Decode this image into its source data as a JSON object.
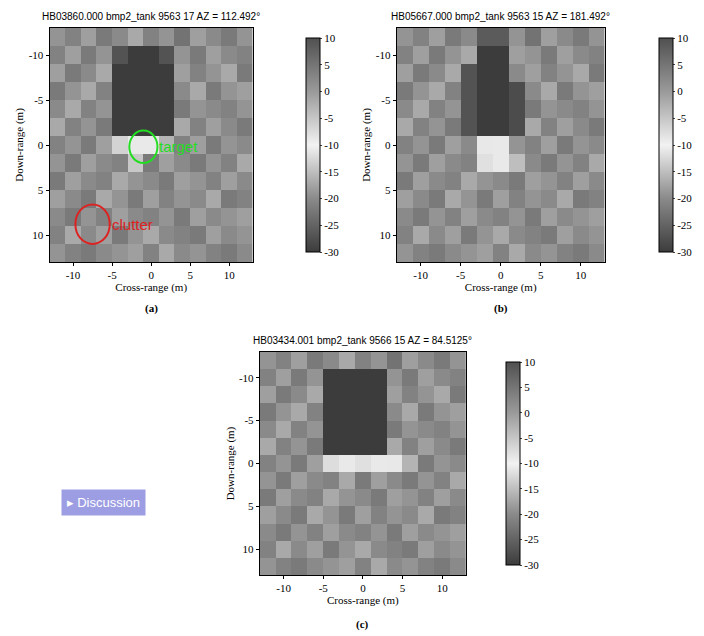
{
  "chart_data": [
    {
      "type": "heatmap",
      "title": "HB03860.000 bmp2_tank 9563 17 AZ = 112.492°",
      "panel": "(a)",
      "xlabel": "Cross-range (m)",
      "ylabel": "Down-range (m)",
      "x": [
        -12,
        -10,
        -8,
        -6,
        -4,
        -2,
        0,
        2,
        4,
        6,
        8,
        10,
        12
      ],
      "y": [
        -12,
        -10,
        -8,
        -6,
        -4,
        -2,
        0,
        2,
        4,
        6,
        8,
        10,
        12
      ],
      "z": [
        [
          -19,
          -21,
          -18,
          -22,
          -20,
          -17,
          -21,
          -19,
          -23,
          -18,
          -20,
          -22,
          -19
        ],
        [
          -21,
          -18,
          -22,
          -19,
          -27,
          -30,
          -30,
          -27,
          -19,
          -22,
          -18,
          -20,
          -21
        ],
        [
          -18,
          -22,
          -20,
          -17,
          -30,
          -30,
          -30,
          -30,
          -18,
          -21,
          -19,
          -17,
          -22
        ],
        [
          -22,
          -19,
          -17,
          -21,
          -30,
          -30,
          -30,
          -30,
          -20,
          -17,
          -22,
          -19,
          -18
        ],
        [
          -20,
          -17,
          -21,
          -19,
          -30,
          -30,
          -30,
          -30,
          -22,
          -19,
          -20,
          -21,
          -19
        ],
        [
          -17,
          -21,
          -19,
          -22,
          -30,
          -30,
          -30,
          -30,
          -17,
          -21,
          -18,
          -20,
          -22
        ],
        [
          -21,
          -19,
          -22,
          -18,
          -13,
          -9,
          -9,
          -16,
          -21,
          -18,
          -22,
          -19,
          -20
        ],
        [
          -19,
          -22,
          -18,
          -20,
          -21,
          -14,
          -22,
          -18,
          -20,
          -22,
          -19,
          -21,
          -17
        ],
        [
          -22,
          -18,
          -20,
          -21,
          -17,
          -19,
          -20,
          -22,
          -18,
          -19,
          -21,
          -18,
          -20
        ],
        [
          -18,
          -20,
          -22,
          -17,
          -19,
          -22,
          -18,
          -21,
          -19,
          -20,
          -17,
          -22,
          -21
        ],
        [
          -20,
          -22,
          -19,
          -21,
          -18,
          -20,
          -21,
          -19,
          -22,
          -18,
          -20,
          -19,
          -18
        ],
        [
          -21,
          -17,
          -20,
          -18,
          -22,
          -19,
          -17,
          -20,
          -21,
          -22,
          -18,
          -20,
          -19
        ],
        [
          -19,
          -21,
          -22,
          -20,
          -19,
          -18,
          -21,
          -17,
          -20,
          -19,
          -21,
          -22,
          -20
        ]
      ],
      "xlim": [
        -13,
        13
      ],
      "ylim": [
        13,
        -13
      ],
      "xticks": [
        -10,
        -5,
        0,
        5,
        10
      ],
      "yticks": [
        -10,
        -5,
        0,
        5,
        10
      ],
      "colorbar_range": [
        -30,
        10
      ],
      "colorbar_ticks": [
        10,
        5,
        0,
        -5,
        -10,
        -15,
        -20,
        -25,
        -30
      ],
      "grid": true,
      "annotations": [
        {
          "text": "target",
          "x": -1,
          "y": 0.2,
          "r": 1.8,
          "color": "#22dd22"
        },
        {
          "text": "clutter",
          "x": -7.5,
          "y": 8.8,
          "r": 2.2,
          "color": "#dd2222"
        }
      ]
    },
    {
      "type": "heatmap",
      "title": "HB05667.000 bmp2_tank 9563 15 AZ = 181.492°",
      "panel": "(b)",
      "xlabel": "Cross-range (m)",
      "ylabel": "Down-range (m)",
      "x": [
        -12,
        -10,
        -8,
        -6,
        -4,
        -2,
        0,
        2,
        4,
        6,
        8,
        10,
        12
      ],
      "y": [
        -12,
        -10,
        -8,
        -6,
        -4,
        -2,
        0,
        2,
        4,
        6,
        8,
        10,
        12
      ],
      "z": [
        [
          -19,
          -21,
          -18,
          -22,
          -20,
          -26,
          -26,
          -19,
          -23,
          -18,
          -20,
          -22,
          -19
        ],
        [
          -21,
          -18,
          -22,
          -19,
          -17,
          -30,
          -30,
          -18,
          -19,
          -22,
          -18,
          -20,
          -21
        ],
        [
          -18,
          -22,
          -20,
          -17,
          -27,
          -30,
          -30,
          -20,
          -18,
          -21,
          -19,
          -17,
          -22
        ],
        [
          -22,
          -19,
          -17,
          -21,
          -27,
          -30,
          -30,
          -28,
          -20,
          -17,
          -22,
          -19,
          -18
        ],
        [
          -20,
          -17,
          -21,
          -19,
          -27,
          -30,
          -30,
          -28,
          -22,
          -19,
          -20,
          -21,
          -19
        ],
        [
          -17,
          -21,
          -19,
          -22,
          -27,
          -30,
          -30,
          -28,
          -17,
          -21,
          -18,
          -20,
          -22
        ],
        [
          -21,
          -19,
          -22,
          -18,
          -20,
          -11,
          -9,
          -19,
          -21,
          -18,
          -22,
          -19,
          -20
        ],
        [
          -19,
          -22,
          -18,
          -20,
          -21,
          -8,
          -9,
          -15,
          -20,
          -22,
          -19,
          -21,
          -17
        ],
        [
          -22,
          -18,
          -20,
          -21,
          -17,
          -19,
          -20,
          -22,
          -18,
          -19,
          -21,
          -18,
          -20
        ],
        [
          -18,
          -20,
          -22,
          -17,
          -19,
          -22,
          -18,
          -21,
          -19,
          -20,
          -17,
          -22,
          -21
        ],
        [
          -20,
          -22,
          -19,
          -21,
          -18,
          -20,
          -21,
          -19,
          -22,
          -18,
          -20,
          -19,
          -18
        ],
        [
          -21,
          -17,
          -20,
          -18,
          -22,
          -19,
          -17,
          -20,
          -21,
          -22,
          -18,
          -20,
          -19
        ],
        [
          -19,
          -21,
          -22,
          -20,
          -19,
          -18,
          -21,
          -17,
          -20,
          -19,
          -21,
          -22,
          -20
        ]
      ],
      "xlim": [
        -13,
        13
      ],
      "ylim": [
        13,
        -13
      ],
      "xticks": [
        -10,
        -5,
        0,
        5,
        10
      ],
      "yticks": [
        -10,
        -5,
        0,
        5,
        10
      ],
      "colorbar_range": [
        -30,
        10
      ],
      "colorbar_ticks": [
        10,
        5,
        0,
        -5,
        -10,
        -15,
        -20,
        -25,
        -30
      ],
      "grid": true
    },
    {
      "type": "heatmap",
      "title": "HB03434.001 bmp2_tank 9566 15 AZ = 84.5125°",
      "panel": "(c)",
      "xlabel": "Cross-range (m)",
      "ylabel": "Down-range (m)",
      "x": [
        -12,
        -10,
        -8,
        -6,
        -4,
        -2,
        0,
        2,
        4,
        6,
        8,
        10,
        12
      ],
      "y": [
        -12,
        -10,
        -8,
        -6,
        -4,
        -2,
        0,
        2,
        4,
        6,
        8,
        10,
        12
      ],
      "z": [
        [
          -19,
          -21,
          -18,
          -22,
          -20,
          -17,
          -21,
          -19,
          -23,
          -18,
          -20,
          -22,
          -19
        ],
        [
          -21,
          -18,
          -22,
          -19,
          -30,
          -30,
          -30,
          -30,
          -19,
          -22,
          -18,
          -20,
          -21
        ],
        [
          -18,
          -22,
          -20,
          -17,
          -30,
          -30,
          -30,
          -30,
          -18,
          -21,
          -19,
          -17,
          -22
        ],
        [
          -22,
          -19,
          -17,
          -21,
          -30,
          -30,
          -30,
          -30,
          -20,
          -17,
          -22,
          -19,
          -18
        ],
        [
          -20,
          -17,
          -21,
          -19,
          -30,
          -30,
          -30,
          -30,
          -22,
          -19,
          -20,
          -21,
          -19
        ],
        [
          -17,
          -21,
          -19,
          -22,
          -30,
          -30,
          -30,
          -30,
          -17,
          -21,
          -18,
          -20,
          -22
        ],
        [
          -21,
          -19,
          -22,
          -18,
          -12,
          -9,
          -8,
          -9,
          -11,
          -16,
          -22,
          -19,
          -20
        ],
        [
          -19,
          -22,
          -18,
          -20,
          -21,
          -17,
          -22,
          -18,
          -20,
          -22,
          -19,
          -21,
          -17
        ],
        [
          -22,
          -18,
          -20,
          -21,
          -17,
          -19,
          -20,
          -22,
          -18,
          -19,
          -21,
          -18,
          -20
        ],
        [
          -18,
          -20,
          -22,
          -17,
          -19,
          -22,
          -18,
          -21,
          -19,
          -20,
          -17,
          -22,
          -21
        ],
        [
          -20,
          -22,
          -19,
          -21,
          -18,
          -20,
          -21,
          -19,
          -22,
          -18,
          -20,
          -19,
          -18
        ],
        [
          -21,
          -17,
          -20,
          -18,
          -22,
          -19,
          -17,
          -20,
          -21,
          -22,
          -18,
          -20,
          -19
        ],
        [
          -19,
          -21,
          -22,
          -20,
          -19,
          -18,
          -21,
          -17,
          -20,
          -19,
          -21,
          -22,
          -20
        ]
      ],
      "xlim": [
        -13,
        13
      ],
      "ylim": [
        13,
        -13
      ],
      "xticks": [
        -10,
        -5,
        0,
        5,
        10
      ],
      "yticks": [
        -10,
        -5,
        0,
        5,
        10
      ],
      "colorbar_range": [
        -30,
        10
      ],
      "colorbar_ticks": [
        10,
        5,
        0,
        -5,
        -10,
        -15,
        -20,
        -25,
        -30
      ],
      "grid": true
    }
  ],
  "button": "▸ Discussion"
}
